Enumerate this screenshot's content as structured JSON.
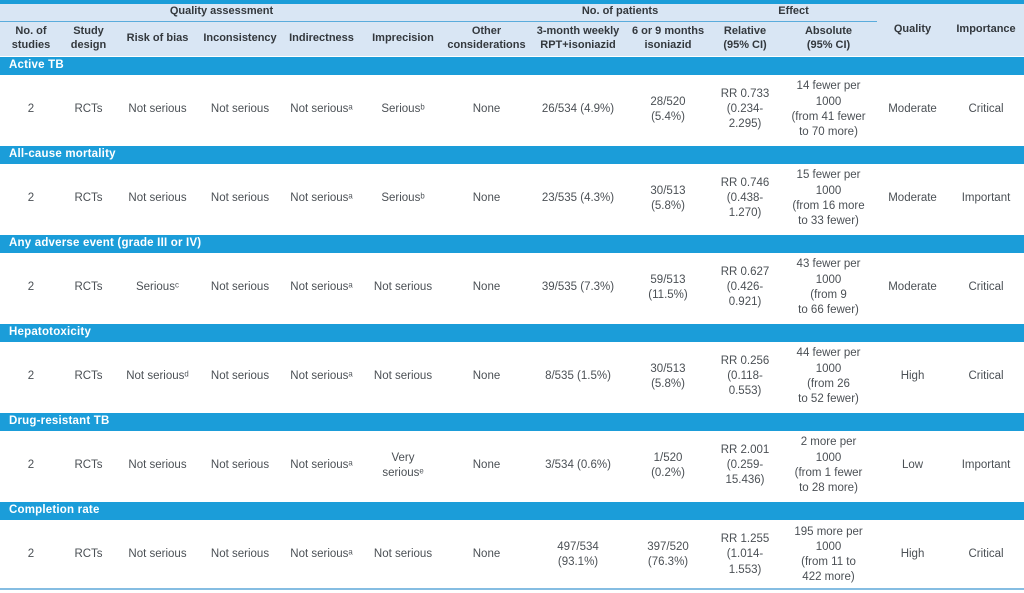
{
  "colors": {
    "accent": "#1b9dd9",
    "header_bg": "#d9e6f4",
    "rule_mid": "#5aacdc",
    "rule_light": "#85bde2"
  },
  "table": {
    "header": {
      "groups": {
        "quality_assessment": "Quality assessment",
        "no_of_patients": "No. of patients",
        "effect": "Effect"
      },
      "columns": [
        "No. of\nstudies",
        "Study\ndesign",
        "Risk of bias",
        "Inconsistency",
        "Indirectness",
        "Imprecision",
        "Other\nconsiderations",
        "3-month weekly\nRPT+isoniazid",
        "6 or 9 months\nisoniazid",
        "Relative\n(95% CI)",
        "Absolute\n(95% CI)"
      ],
      "quality": "Quality",
      "importance": "Importance"
    },
    "sections": [
      {
        "title": "Active TB",
        "cells": [
          "2",
          "RCTs",
          "Not serious",
          "Not serious",
          "Not seriousᵃ",
          "Seriousᵇ",
          "None",
          "26/534 (4.9%)",
          "28/520\n(5.4%)",
          "RR 0.733\n(0.234-\n2.295)",
          "14 fewer per\n1000\n(from 41 fewer\nto 70 more)",
          "Moderate",
          "Critical"
        ]
      },
      {
        "title": "All-cause mortality",
        "cells": [
          "2",
          "RCTs",
          "Not serious",
          "Not serious",
          "Not seriousᵃ",
          "Seriousᵇ",
          "None",
          "23/535 (4.3%)",
          "30/513\n(5.8%)",
          "RR 0.746\n(0.438-\n1.270)",
          "15 fewer per\n1000\n(from 16 more\nto 33 fewer)",
          "Moderate",
          "Important"
        ]
      },
      {
        "title": "Any adverse event (grade III or IV)",
        "cells": [
          "2",
          "RCTs",
          "Seriousᶜ",
          "Not serious",
          "Not seriousᵃ",
          "Not serious",
          "None",
          "39/535 (7.3%)",
          "59/513\n(11.5%)",
          "RR 0.627\n(0.426-\n0.921)",
          "43 fewer per\n1000\n(from 9\nto 66 fewer)",
          "Moderate",
          "Critical"
        ]
      },
      {
        "title": "Hepatotoxicity",
        "cells": [
          "2",
          "RCTs",
          "Not seriousᵈ",
          "Not serious",
          "Not seriousᵃ",
          "Not serious",
          "None",
          "8/535 (1.5%)",
          "30/513\n(5.8%)",
          "RR 0.256\n(0.118-\n0.553)",
          "44 fewer per\n1000\n(from 26\nto 52 fewer)",
          "High",
          "Critical"
        ]
      },
      {
        "title": "Drug-resistant TB",
        "cells": [
          "2",
          "RCTs",
          "Not serious",
          "Not serious",
          "Not seriousᵃ",
          "Very\nseriousᵉ",
          "None",
          "3/534 (0.6%)",
          "1/520\n(0.2%)",
          "RR 2.001\n(0.259-\n15.436)",
          "2 more per\n1000\n(from 1 fewer\nto 28 more)",
          "Low",
          "Important"
        ]
      },
      {
        "title": "Completion rate",
        "cells": [
          "2",
          "RCTs",
          "Not serious",
          "Not serious",
          "Not seriousᵃ",
          "Not serious",
          "None",
          "497/534\n(93.1%)",
          "397/520\n(76.3%)",
          "RR 1.255\n(1.014-\n1.553)",
          "195 more per\n1000\n(from 11 to\n422 more)",
          "High",
          "Critical"
        ]
      }
    ]
  }
}
